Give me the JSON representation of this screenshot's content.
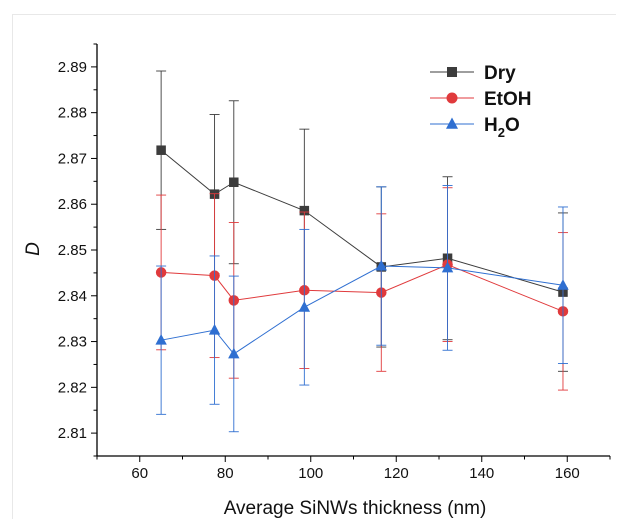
{
  "chart_data": {
    "type": "line",
    "title": "",
    "xlabel": "Average SiNWs thickness (nm)",
    "ylabel": "D",
    "xlim": [
      50,
      170
    ],
    "ylim": [
      2.805,
      2.895
    ],
    "xticks": [
      60,
      80,
      100,
      120,
      140,
      160
    ],
    "yticks": [
      2.81,
      2.82,
      2.83,
      2.84,
      2.85,
      2.86,
      2.87,
      2.88,
      2.89
    ],
    "grid": false,
    "legend_position": "top-right",
    "x": [
      65,
      77.5,
      82,
      98.5,
      116.5,
      132,
      159
    ],
    "series": [
      {
        "name": "Dry",
        "legend_main": "Dry",
        "legend_sub": "",
        "color": "#3c3c3c",
        "marker": "square",
        "values": [
          2.8718,
          2.8622,
          2.8648,
          2.8586,
          2.8463,
          2.8482,
          2.8408
        ],
        "errors": [
          0.0173,
          0.0174,
          0.0178,
          0.0178,
          0.0175,
          0.0178,
          0.0173
        ]
      },
      {
        "name": "EtOH",
        "legend_main": "EtOH",
        "legend_sub": "",
        "color": "#e03a3c",
        "marker": "circle",
        "values": [
          2.8451,
          2.8444,
          2.839,
          2.8412,
          2.8407,
          2.8468,
          2.8366
        ],
        "errors": [
          0.0169,
          0.0179,
          0.017,
          0.0171,
          0.0172,
          0.0168,
          0.0172
        ]
      },
      {
        "name": "H2O",
        "legend_main": "H",
        "legend_sub": "2",
        "legend_tail": "O",
        "color": "#2f6fd1",
        "marker": "triangle",
        "values": [
          2.8303,
          2.8325,
          2.8273,
          2.8375,
          2.8465,
          2.8461,
          2.8423
        ],
        "errors": [
          0.0162,
          0.0162,
          0.017,
          0.017,
          0.0173,
          0.018,
          0.0171
        ]
      }
    ]
  }
}
